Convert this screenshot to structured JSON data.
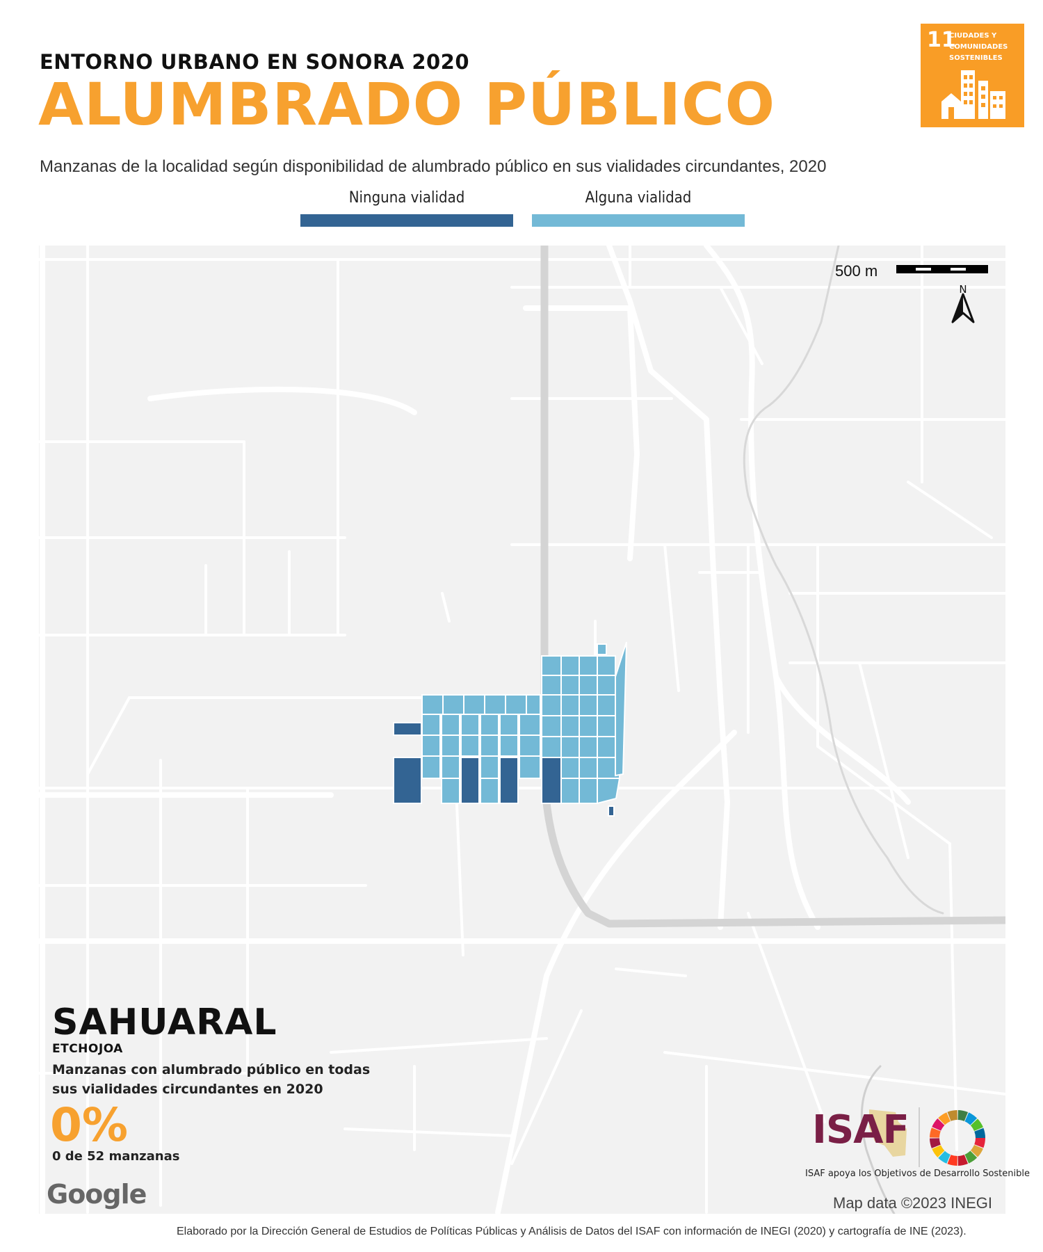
{
  "header": {
    "kicker": "ENTORNO URBANO EN SONORA 2020",
    "title": "ALUMBRADO PÚBLICO",
    "subtitle": "Manzanas de la localidad según disponibilidad de alumbrado público en sus vialidades circundantes, 2020"
  },
  "sdg_badge": {
    "number": "11",
    "text": "CIUDADES Y COMUNIDADES SOSTENIBLES",
    "color": "#f99d26"
  },
  "legend": [
    {
      "label": "Ninguna vialidad",
      "color": "#336493"
    },
    {
      "label": "Alguna vialidad",
      "color": "#73b9d6"
    }
  ],
  "map": {
    "scale_label": "500 m",
    "north_label": "N",
    "attribution": "Map data ©2023 INEGI",
    "provider_logo": "Google"
  },
  "locality": {
    "name": "SAHUARAL",
    "municipality": "ETCHOJOA",
    "metric_description": "Manzanas con alumbrado público en todas sus vialidades circundantes en 2020",
    "percent": "0%",
    "count_text": "0 de 52 manzanas"
  },
  "logos": {
    "isaf": "ISAF",
    "isaf_tagline": "ISAF apoya los Objetivos de Desarrollo Sostenible"
  },
  "footer": {
    "credit": "Elaborado por la Dirección General de Estudios de Políticas Públicas y Análisis de Datos del ISAF con información de INEGI (2020) y cartografía de INE (2023)."
  }
}
